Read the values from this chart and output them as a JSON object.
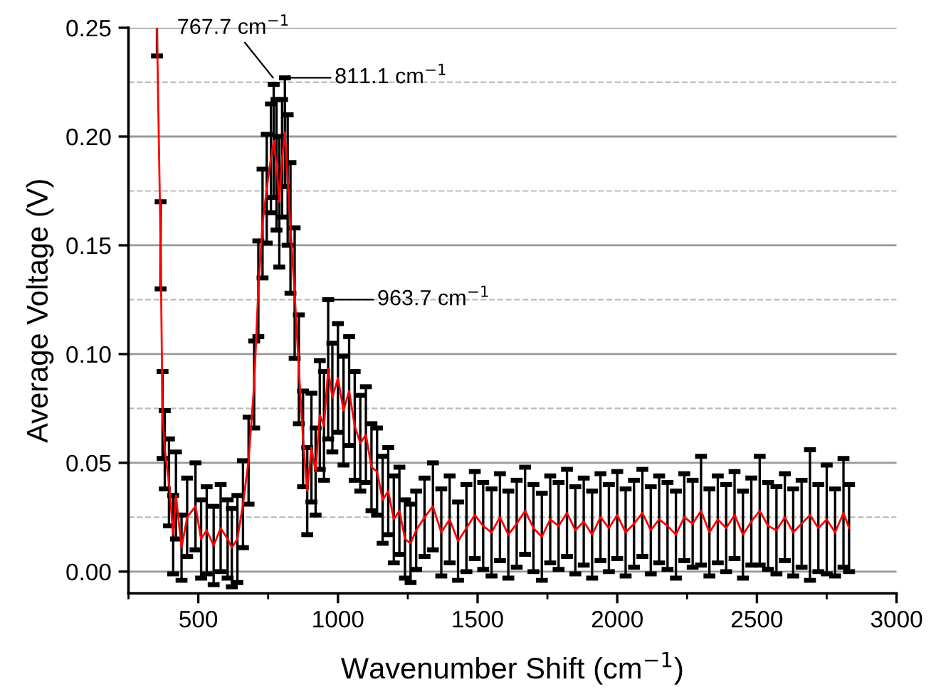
{
  "chart_data": {
    "type": "line",
    "xlabel": "Wavenumber Shift (cm$^{−1}$)",
    "ylabel": "Average Voltage (V)",
    "x": [
      352,
      365,
      372,
      380,
      395,
      410,
      420,
      440,
      460,
      490,
      510,
      530,
      555,
      580,
      605,
      620,
      640,
      660,
      680,
      700,
      715,
      730,
      745,
      760,
      770,
      780,
      790,
      800,
      810,
      820,
      830,
      845,
      860,
      875,
      890,
      905,
      920,
      935,
      950,
      965,
      980,
      1000,
      1020,
      1040,
      1060,
      1080,
      1100,
      1120,
      1140,
      1160,
      1180,
      1200,
      1220,
      1240,
      1260,
      1280,
      1310,
      1340,
      1370,
      1400,
      1430,
      1460,
      1490,
      1520,
      1550,
      1580,
      1610,
      1640,
      1670,
      1700,
      1730,
      1760,
      1790,
      1820,
      1850,
      1880,
      1910,
      1940,
      1970,
      2000,
      2030,
      2060,
      2090,
      2120,
      2150,
      2180,
      2210,
      2240,
      2270,
      2300,
      2330,
      2360,
      2390,
      2420,
      2450,
      2480,
      2510,
      2540,
      2570,
      2600,
      2630,
      2660,
      2690,
      2720,
      2750,
      2780,
      2810,
      2830
    ],
    "series": [
      {
        "color": "#ff0000",
        "values": [
          0.25,
          0.15,
          0.072,
          0.056,
          0.041,
          0.017,
          0.035,
          0.011,
          0.025,
          0.03,
          0.015,
          0.019,
          0.012,
          0.02,
          0.015,
          0.011,
          0.015,
          0.031,
          0.051,
          0.086,
          0.13,
          0.16,
          0.176,
          0.19,
          0.198,
          0.187,
          0.17,
          0.19,
          0.202,
          0.18,
          0.158,
          0.128,
          0.093,
          0.061,
          0.037,
          0.057,
          0.046,
          0.072,
          0.067,
          0.093,
          0.08,
          0.089,
          0.074,
          0.083,
          0.067,
          0.059,
          0.063,
          0.048,
          0.046,
          0.033,
          0.037,
          0.024,
          0.028,
          0.015,
          0.013,
          0.019,
          0.025,
          0.03,
          0.018,
          0.024,
          0.014,
          0.02,
          0.026,
          0.021,
          0.018,
          0.025,
          0.017,
          0.022,
          0.028,
          0.02,
          0.016,
          0.024,
          0.021,
          0.027,
          0.019,
          0.023,
          0.017,
          0.025,
          0.02,
          0.026,
          0.018,
          0.022,
          0.027,
          0.019,
          0.024,
          0.021,
          0.017,
          0.025,
          0.022,
          0.028,
          0.018,
          0.024,
          0.02,
          0.026,
          0.017,
          0.023,
          0.028,
          0.021,
          0.019,
          0.025,
          0.018,
          0.022,
          0.026,
          0.02,
          0.024,
          0.018,
          0.027,
          0.02
        ],
        "errors": [
          0.013,
          0.02,
          0.02,
          0.018,
          0.02,
          0.018,
          0.02,
          0.015,
          0.018,
          0.02,
          0.018,
          0.02,
          0.018,
          0.02,
          0.018,
          0.018,
          0.02,
          0.02,
          0.02,
          0.02,
          0.022,
          0.025,
          0.025,
          0.025,
          0.026,
          0.03,
          0.03,
          0.027,
          0.025,
          0.03,
          0.03,
          0.03,
          0.025,
          0.022,
          0.02,
          0.025,
          0.02,
          0.025,
          0.025,
          0.032,
          0.025,
          0.025,
          0.025,
          0.025,
          0.025,
          0.022,
          0.022,
          0.02,
          0.02,
          0.02,
          0.02,
          0.02,
          0.02,
          0.018,
          0.018,
          0.018,
          0.018,
          0.02,
          0.02,
          0.02,
          0.018,
          0.02,
          0.02,
          0.02,
          0.02,
          0.02,
          0.02,
          0.02,
          0.02,
          0.02,
          0.02,
          0.02,
          0.02,
          0.02,
          0.02,
          0.02,
          0.02,
          0.02,
          0.02,
          0.02,
          0.02,
          0.02,
          0.02,
          0.02,
          0.02,
          0.02,
          0.02,
          0.02,
          0.02,
          0.025,
          0.02,
          0.02,
          0.02,
          0.02,
          0.02,
          0.02,
          0.025,
          0.02,
          0.02,
          0.02,
          0.02,
          0.02,
          0.03,
          0.02,
          0.025,
          0.02,
          0.025,
          0.02
        ]
      }
    ],
    "xlim": [
      250,
      3000
    ],
    "xticks": [
      {
        "value": 250,
        "label": null
      },
      500,
      {
        "value": 750,
        "label": null
      },
      1000,
      {
        "value": 1250,
        "label": null
      },
      1500,
      {
        "value": 1750,
        "label": null
      },
      2000,
      {
        "value": 2250,
        "label": null
      },
      2500,
      {
        "value": 2750,
        "label": null
      },
      3000
    ],
    "ylim": [
      -0.01,
      0.25
    ],
    "yticks": [
      {
        "value": 0,
        "label": "0.00"
      },
      {
        "value": 0.025,
        "label": null
      },
      {
        "value": 0.05,
        "label": "0.05"
      },
      {
        "value": 0.075,
        "label": null
      },
      {
        "value": 0.1,
        "label": "0.10"
      },
      {
        "value": 0.125,
        "label": null
      },
      {
        "value": 0.15,
        "label": "0.15"
      },
      {
        "value": 0.175,
        "label": null
      },
      {
        "value": 0.2,
        "label": "0.20"
      },
      {
        "value": 0.225,
        "label": null
      },
      {
        "value": 0.25,
        "label": "0.25"
      }
    ],
    "grid": "y",
    "legend": false,
    "marker": "none",
    "line_style": "solid",
    "annotations": [
      {
        "text": "767.7 cm$^{−1}$",
        "x": 767.7,
        "y": 0.227
      },
      {
        "text": "811.1 cm$^{−1}$",
        "x": 811.1,
        "y": 0.227
      },
      {
        "text": "963.7 cm$^{−1}$",
        "x": 963.7,
        "y": 0.125
      }
    ]
  }
}
